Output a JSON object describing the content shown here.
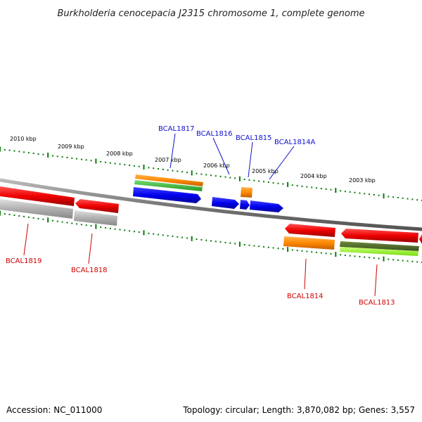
{
  "title": "Burkholderia cenocepacia J2315 chromosome 1, complete genome",
  "footer": {
    "accession": "Accession: NC_011000",
    "summary": "Topology: circular; Length: 3,870,082 bp; Genes: 3,557"
  },
  "kbp_labels": [
    "2010 kbp",
    "2009 kbp",
    "2008 kbp",
    "2007 kbp",
    "2006 kbp",
    "2005 kbp",
    "2004 kbp",
    "2003 kbp"
  ],
  "gene_labels_top": [
    "BCAL1817",
    "BCAL1816",
    "BCAL1815",
    "BCAL1814A"
  ],
  "gene_labels_bottom": [
    "BCAL1819",
    "BCAL1818",
    "BCAL1814",
    "BCAL1813"
  ],
  "colors": {
    "forward_cds": "#0000ee",
    "reverse_cds": "#ee0000",
    "orange_feature": "#ff8800",
    "green_feature": "#33bb33",
    "olive_feature": "#556b2f",
    "lime_feature": "#99ff33",
    "gray_feature": "#b0b0b0",
    "tick_green": "#0a7a0a",
    "backbone": "#888888",
    "label_top": "#1010d0",
    "label_bottom": "#d00000"
  }
}
